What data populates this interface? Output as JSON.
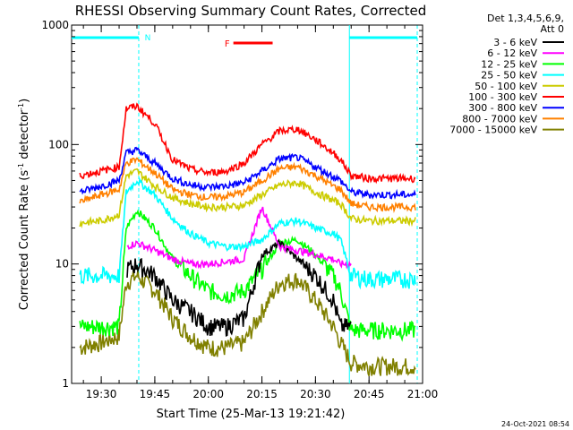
{
  "chart_data": {
    "type": "line",
    "title": "RHESSI Observing Summary Count Rates, Corrected",
    "xlabel": "Start Time (25-Mar-13 19:21:42)",
    "ylabel_main": "Corrected Count Rate (s",
    "ylabel_sup1": "-1",
    "ylabel_mid": " detector",
    "ylabel_sup2": "-1",
    "ylabel_end": ")",
    "yscale": "log",
    "ylim": [
      1,
      1000
    ],
    "y_ticks": [
      {
        "value": 1,
        "label": "1"
      },
      {
        "value": 10,
        "label": "10"
      },
      {
        "value": 100,
        "label": "100"
      },
      {
        "value": 1000,
        "label": "1000"
      }
    ],
    "xlim": [
      "19:21:42",
      "21:00:00"
    ],
    "x_ticks": [
      "19:30",
      "19:45",
      "20:00",
      "20:15",
      "20:30",
      "20:45",
      "21:00"
    ],
    "legend_header": [
      "Det 1,3,4,5,6,9,",
      "Att 0"
    ],
    "legend_position": "right",
    "footer_date": "24-Oct-2021 08:54",
    "annotations": {
      "night_marker": "N",
      "flare_marker": "F",
      "night_bars": [
        [
          "19:21:42",
          "19:40:30"
        ],
        [
          "20:39:30",
          "20:58:30"
        ]
      ],
      "flare_bar": [
        "20:07:00",
        "20:18:00"
      ],
      "vertical_lines": [
        "19:40:30",
        "20:39:30",
        "20:58:30"
      ]
    },
    "x_samples": [
      "19:24",
      "19:30",
      "19:35",
      "19:37",
      "19:40",
      "19:45",
      "19:50",
      "19:55",
      "20:00",
      "20:05",
      "20:10",
      "20:15",
      "20:20",
      "20:25",
      "20:30",
      "20:35",
      "20:37",
      "20:40",
      "20:45",
      "20:50",
      "20:58"
    ],
    "series": [
      {
        "name": "3 - 6 keV",
        "color": "#000000",
        "values": [
          null,
          null,
          null,
          9,
          10,
          8,
          5,
          4,
          3,
          3,
          3.5,
          12,
          15,
          11,
          8,
          5,
          3,
          3,
          null,
          null,
          null
        ]
      },
      {
        "name": "6 - 12 keV",
        "color": "#ff00ff",
        "values": [
          null,
          null,
          null,
          14,
          15,
          13,
          11,
          10,
          10,
          10.5,
          11,
          30,
          14,
          13,
          12,
          11,
          10,
          10,
          null,
          null,
          null
        ]
      },
      {
        "name": "12 - 25 keV",
        "color": "#00ff00",
        "values": [
          3,
          3,
          3,
          20,
          28,
          20,
          11,
          8,
          6,
          5.5,
          6,
          9,
          15,
          16,
          12,
          8,
          6,
          2.8,
          2.8,
          2.8,
          2.8
        ]
      },
      {
        "name": "25 - 50 keV",
        "color": "#00ffff",
        "values": [
          8,
          8,
          8,
          40,
          50,
          38,
          24,
          18,
          15,
          14,
          14,
          16,
          22,
          23,
          20,
          18,
          16,
          8,
          7.5,
          7.5,
          7.5
        ]
      },
      {
        "name": "50 - 100 keV",
        "color": "#cccc00",
        "values": [
          22,
          23,
          26,
          55,
          60,
          45,
          36,
          32,
          30,
          30,
          31,
          38,
          46,
          48,
          40,
          34,
          32,
          24,
          23,
          23,
          23
        ]
      },
      {
        "name": "100 - 300 keV",
        "color": "#ff0000",
        "values": [
          55,
          60,
          65,
          200,
          210,
          150,
          75,
          62,
          58,
          60,
          70,
          100,
          130,
          135,
          110,
          85,
          75,
          55,
          52,
          52,
          52
        ]
      },
      {
        "name": "300 - 800 keV",
        "color": "#0000ff",
        "values": [
          40,
          45,
          50,
          85,
          90,
          70,
          52,
          46,
          44,
          45,
          48,
          60,
          76,
          78,
          65,
          54,
          50,
          40,
          38,
          38,
          38
        ]
      },
      {
        "name": "800 - 7000 keV",
        "color": "#ff8000",
        "values": [
          33,
          38,
          42,
          70,
          75,
          58,
          42,
          38,
          36,
          37,
          40,
          50,
          63,
          65,
          55,
          45,
          42,
          32,
          30,
          30,
          30
        ]
      },
      {
        "name": "7000 - 15000 keV",
        "color": "#808000",
        "values": [
          2,
          2.2,
          2.5,
          7,
          8,
          6,
          3.5,
          2.5,
          2,
          2,
          2.2,
          4,
          7,
          7.5,
          5,
          3,
          2.2,
          1.5,
          1.4,
          1.4,
          1.4
        ]
      }
    ]
  }
}
